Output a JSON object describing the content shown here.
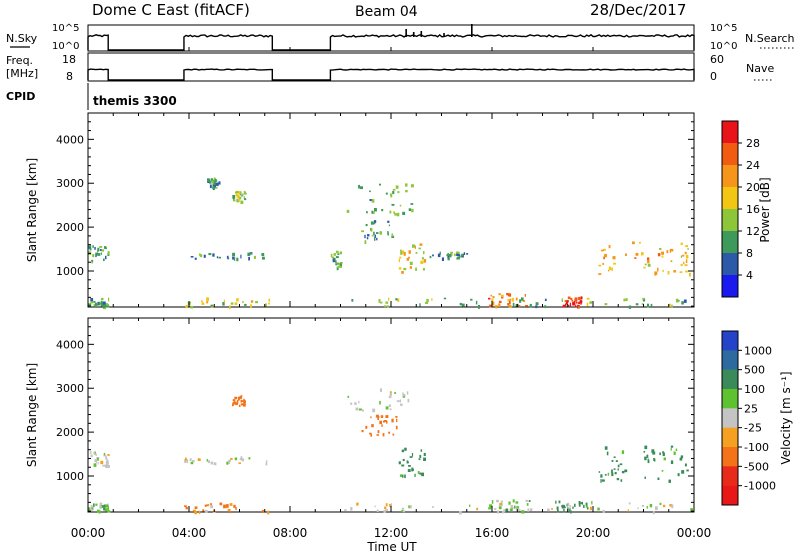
{
  "header": {
    "radar": "Dome C East (fitACF)",
    "beam": "Beam 04",
    "date": "28/Dec/2017"
  },
  "strips": {
    "nsky": {
      "label": "N.Sky",
      "ticks": [
        "10^5",
        "10^0"
      ],
      "right_label": "N.Search",
      "right_ticks": [
        "10^5",
        "10^0"
      ]
    },
    "freq": {
      "label_top": "Freq.",
      "label_bottom": "[MHz]",
      "ticks": [
        "18",
        "8"
      ],
      "right_label": "Nave",
      "right_ticks": [
        "60",
        "0"
      ]
    },
    "cpid": {
      "label": "CPID",
      "value": "themis 3300"
    }
  },
  "colorbars": {
    "power": {
      "label": "Power [dB]",
      "ticks": [
        "28",
        "24",
        "20",
        "16",
        "12",
        "8",
        "4"
      ],
      "colors": [
        "#e8141a",
        "#f25c12",
        "#f5961a",
        "#f2c612",
        "#8ec63a",
        "#3e9a5a",
        "#2d5aa8",
        "#1a1aee"
      ]
    },
    "velocity": {
      "label": "Velocity [m s⁻¹]",
      "ticks": [
        "1000",
        "500",
        "100",
        "25",
        "-25",
        "-100",
        "-500",
        "-1000"
      ],
      "colors": [
        "#2443c8",
        "#2d6aa0",
        "#3a8a5a",
        "#5ec230",
        "#c4c4c4",
        "#f5a020",
        "#f57318",
        "#e82a1a",
        "#e81818"
      ]
    }
  },
  "chart_data": [
    {
      "type": "heatmap",
      "name": "power",
      "xlabel": "Time UT",
      "ylabel": "Slant Range [km]",
      "x_ticks": [
        "00:00",
        "04:00",
        "08:00",
        "12:00",
        "16:00",
        "20:00",
        "00:00"
      ],
      "xlim_hours": [
        0,
        24
      ],
      "ylim_km": [
        180,
        4600
      ],
      "y_ticks": [
        1000,
        2000,
        3000,
        4000
      ],
      "grid": false,
      "legend": "colorbar right",
      "echo_regions": [
        {
          "t": [
            0.0,
            0.8
          ],
          "r": [
            1250,
            1600
          ],
          "v": 8
        },
        {
          "t": [
            0.0,
            0.8
          ],
          "r": [
            200,
            400
          ],
          "v": 8
        },
        {
          "t": [
            3.8,
            7.3
          ],
          "r": [
            1300,
            1450
          ],
          "v": 8
        },
        {
          "t": [
            3.8,
            7.3
          ],
          "r": [
            200,
            400
          ],
          "v": 14
        },
        {
          "t": [
            4.7,
            5.2
          ],
          "r": [
            2900,
            3150
          ],
          "v": 8
        },
        {
          "t": [
            5.7,
            6.2
          ],
          "r": [
            2600,
            2850
          ],
          "v": 12
        },
        {
          "t": [
            9.6,
            10.0
          ],
          "r": [
            1100,
            1500
          ],
          "v": 10
        },
        {
          "t": [
            10.2,
            12.8
          ],
          "r": [
            2300,
            3000
          ],
          "v": 10
        },
        {
          "t": [
            10.8,
            12.2
          ],
          "r": [
            1700,
            2200
          ],
          "v": 8
        },
        {
          "t": [
            12.3,
            13.3
          ],
          "r": [
            1000,
            1650
          ],
          "v": 16
        },
        {
          "t": [
            13.5,
            15.0
          ],
          "r": [
            1300,
            1450
          ],
          "v": 8
        },
        {
          "t": [
            15.8,
            17.5
          ],
          "r": [
            200,
            500
          ],
          "v": 22
        },
        {
          "t": [
            18.8,
            19.6
          ],
          "r": [
            200,
            450
          ],
          "v": 28
        },
        {
          "t": [
            20.2,
            23.8
          ],
          "r": [
            900,
            1700
          ],
          "v": 18
        },
        {
          "t": [
            10.0,
            23.9
          ],
          "r": [
            200,
            400
          ],
          "v": 10
        }
      ]
    },
    {
      "type": "heatmap",
      "name": "velocity",
      "xlabel": "Time UT",
      "ylabel": "Slant Range [km]",
      "x_ticks": [
        "00:00",
        "04:00",
        "08:00",
        "12:00",
        "16:00",
        "20:00",
        "00:00"
      ],
      "xlim_hours": [
        0,
        24
      ],
      "ylim_km": [
        180,
        4600
      ],
      "y_ticks": [
        1000,
        2000,
        3000,
        4000
      ],
      "grid": false,
      "legend": "colorbar right",
      "echo_regions": [
        {
          "t": [
            0.0,
            0.8
          ],
          "r": [
            1250,
            1600
          ],
          "v": 0
        },
        {
          "t": [
            0.0,
            0.8
          ],
          "r": [
            200,
            400
          ],
          "v": 60
        },
        {
          "t": [
            3.8,
            7.3
          ],
          "r": [
            1300,
            1450
          ],
          "v": 0
        },
        {
          "t": [
            3.8,
            7.3
          ],
          "r": [
            200,
            400
          ],
          "v": -100
        },
        {
          "t": [
            5.7,
            6.2
          ],
          "r": [
            2600,
            2850
          ],
          "v": -300
        },
        {
          "t": [
            10.2,
            12.8
          ],
          "r": [
            2500,
            3000
          ],
          "v": 0
        },
        {
          "t": [
            10.8,
            12.2
          ],
          "r": [
            1900,
            2400
          ],
          "v": -300
        },
        {
          "t": [
            12.3,
            13.3
          ],
          "r": [
            1000,
            1650
          ],
          "v": 200
        },
        {
          "t": [
            15.8,
            17.5
          ],
          "r": [
            200,
            500
          ],
          "v": 60
        },
        {
          "t": [
            18.5,
            20.0
          ],
          "r": [
            200,
            450
          ],
          "v": 200
        },
        {
          "t": [
            20.2,
            23.8
          ],
          "r": [
            900,
            1700
          ],
          "v": 200
        },
        {
          "t": [
            10.0,
            23.9
          ],
          "r": [
            200,
            400
          ],
          "v": 0
        }
      ]
    }
  ]
}
